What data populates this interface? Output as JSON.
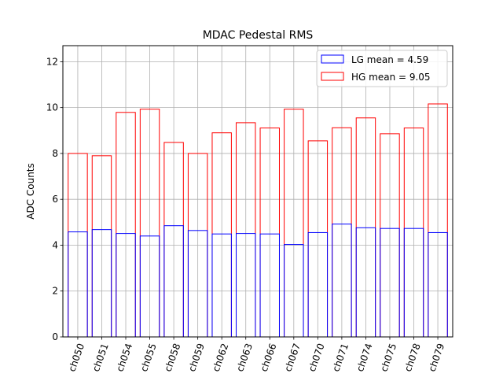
{
  "chart_data": {
    "type": "bar",
    "title": "MDAC Pedestal RMS",
    "xlabel": "",
    "ylabel": "ADC Counts",
    "ylim": [
      0,
      12.7
    ],
    "yticks": [
      0,
      2,
      4,
      6,
      8,
      10,
      12
    ],
    "grid": true,
    "legend_placement": "top-right",
    "categories": [
      "ch050",
      "ch051",
      "ch054",
      "ch055",
      "ch058",
      "ch059",
      "ch062",
      "ch063",
      "ch066",
      "ch067",
      "ch070",
      "ch071",
      "ch074",
      "ch075",
      "ch078",
      "ch079"
    ],
    "series": [
      {
        "name": "LG mean = 4.59",
        "color": "#0000ff",
        "style": "outline",
        "values": [
          4.58,
          4.68,
          4.51,
          4.4,
          4.85,
          4.64,
          4.49,
          4.51,
          4.49,
          4.03,
          4.55,
          4.92,
          4.76,
          4.73,
          4.73,
          4.55
        ]
      },
      {
        "name": "HG mean = 9.05",
        "color": "#ff0000",
        "style": "outline",
        "values": [
          8.0,
          7.9,
          9.79,
          9.93,
          8.48,
          8.0,
          8.9,
          9.34,
          9.11,
          9.93,
          8.55,
          9.12,
          9.55,
          8.86,
          9.11,
          10.16
        ]
      }
    ]
  }
}
